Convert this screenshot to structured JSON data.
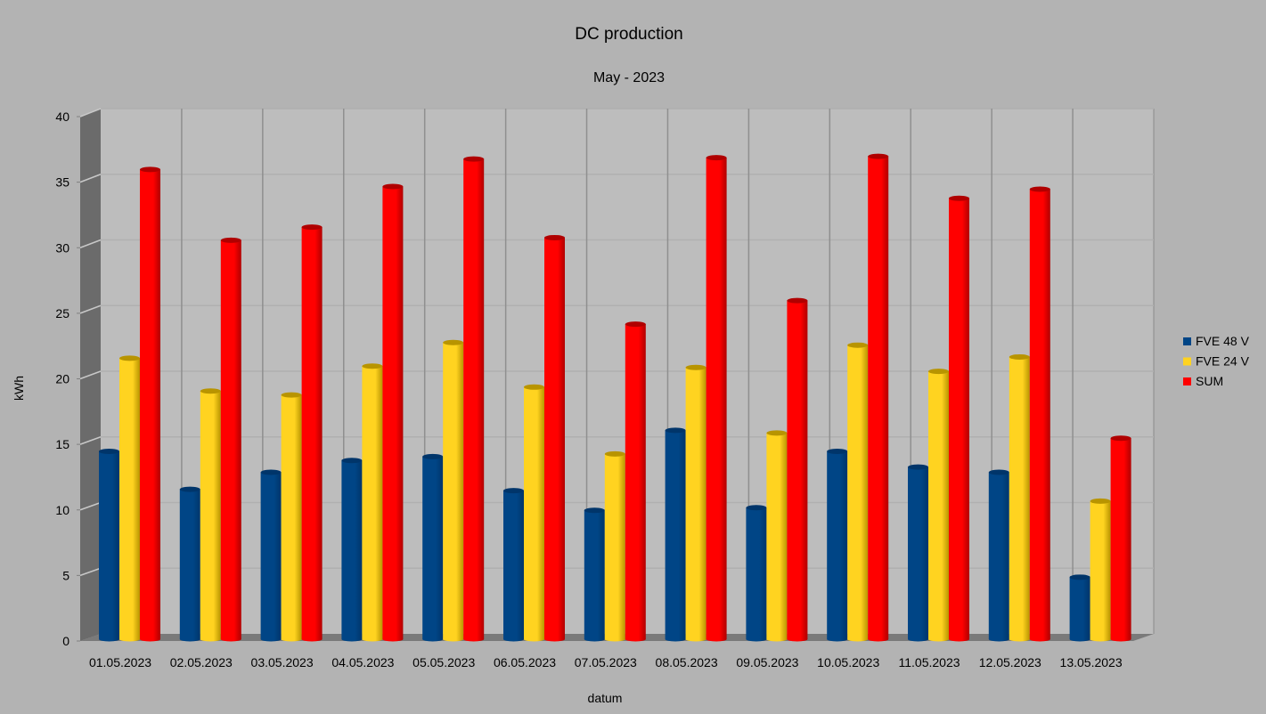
{
  "chart_data": {
    "type": "bar",
    "title": "DC production",
    "subtitle": "May - 2023",
    "xlabel": "datum",
    "ylabel": "kWh",
    "ylim": [
      0,
      40
    ],
    "yticks": [
      "0",
      "5",
      "10",
      "15",
      "20",
      "25",
      "30",
      "35",
      "40"
    ],
    "grid": true,
    "legend_position": "right",
    "categories": [
      "01.05.2023",
      "02.05.2023",
      "03.05.2023",
      "04.05.2023",
      "05.05.2023",
      "06.05.2023",
      "07.05.2023",
      "08.05.2023",
      "09.05.2023",
      "10.05.2023",
      "11.05.2023",
      "12.05.2023",
      "13.05.2023"
    ],
    "series": [
      {
        "name": "FVE 48 V",
        "color": "#004586",
        "top": "#00356a",
        "values": [
          14.4,
          11.5,
          12.8,
          13.7,
          14.0,
          11.4,
          9.9,
          16.0,
          10.1,
          14.4,
          13.2,
          12.8,
          4.8
        ]
      },
      {
        "name": "FVE 24 V",
        "color": "#ffd320",
        "top": "#b89400",
        "values": [
          21.5,
          19.0,
          18.7,
          20.9,
          22.7,
          19.3,
          14.2,
          20.8,
          15.8,
          22.5,
          20.5,
          21.6,
          10.6
        ]
      },
      {
        "name": "SUM",
        "color": "#ff0000",
        "top": "#b00000",
        "values": [
          35.9,
          30.5,
          31.5,
          34.6,
          36.7,
          30.7,
          24.1,
          36.8,
          25.9,
          36.9,
          33.7,
          34.4,
          15.4
        ]
      }
    ]
  }
}
